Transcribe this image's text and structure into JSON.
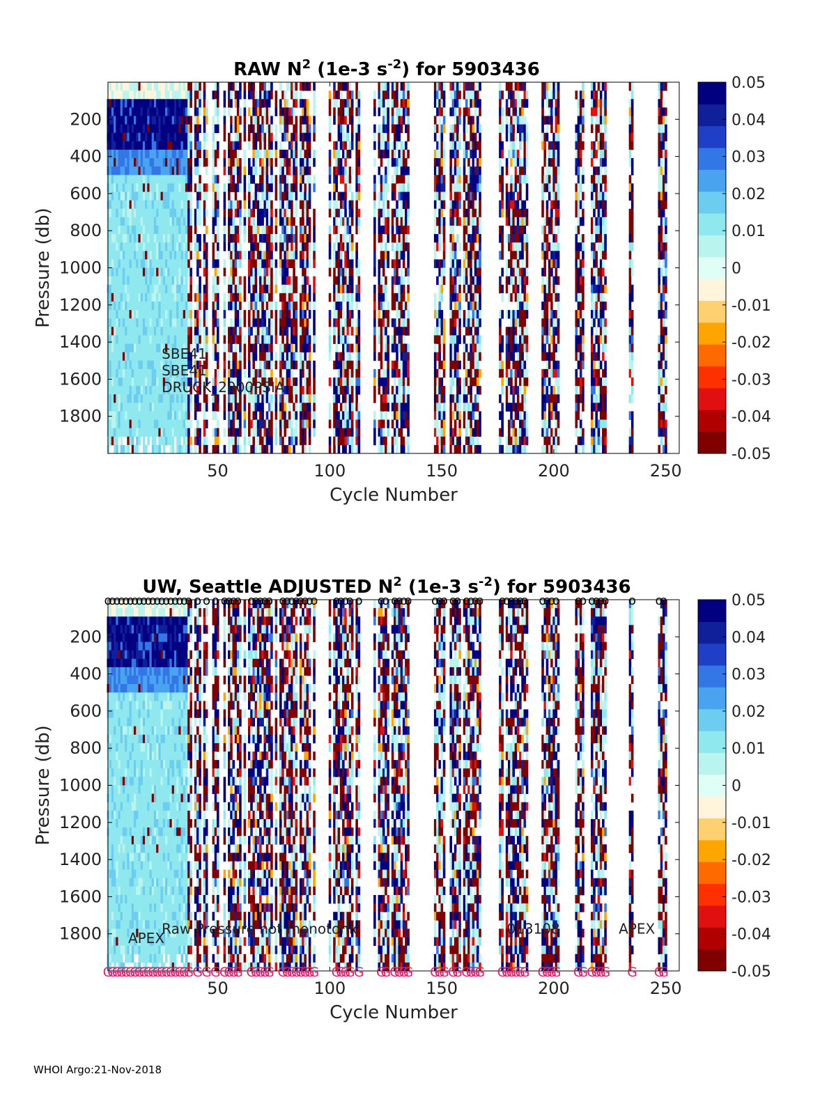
{
  "chart_data": [
    {
      "type": "heatmap",
      "title_prefix": "RAW N",
      "title_sup": "2",
      "title_mid": " (1e-3 s",
      "title_sup2": "-2",
      "title_suffix": ") for 5903436",
      "xlabel": "Cycle Number",
      "ylabel": "Pressure (db)",
      "xlim": [
        1,
        256
      ],
      "ylim": [
        0,
        2000
      ],
      "xticks": [
        "50",
        "100",
        "150",
        "200",
        "250"
      ],
      "xtick_values": [
        50,
        100,
        150,
        200,
        250
      ],
      "yticks": [
        "200",
        "400",
        "600",
        "800",
        "1000",
        "1200",
        "1400",
        "1600",
        "1800"
      ],
      "ytick_values": [
        200,
        400,
        600,
        800,
        1000,
        1200,
        1400,
        1600,
        1800
      ],
      "colorbar_ticks": [
        "0.05",
        "0.04",
        "0.03",
        "0.02",
        "0.01",
        "0",
        "-0.01",
        "-0.02",
        "-0.03",
        "-0.04",
        "-0.05"
      ],
      "colorbar_values": [
        0.05,
        0.04,
        0.03,
        0.02,
        0.01,
        0,
        -0.01,
        -0.02,
        -0.03,
        -0.04,
        -0.05
      ],
      "clim": [
        -0.05,
        0.05
      ],
      "annotations": [
        "SBE41",
        "SBE41",
        "DRUCK_2900PSIA"
      ],
      "annotation_pressures": [
        1490,
        1580,
        1670
      ],
      "annotation_cycle": 25
    },
    {
      "type": "heatmap",
      "title_prefix": "UW, Seattle  ADJUSTED N",
      "title_sup": "2",
      "title_mid": " (1e-3 s",
      "title_sup2": "-2",
      "title_suffix": ") for 5903436",
      "xlabel": "Cycle Number",
      "ylabel": "Pressure (db)",
      "xlim": [
        1,
        256
      ],
      "ylim": [
        0,
        2000
      ],
      "xticks": [
        "50",
        "100",
        "150",
        "200",
        "250"
      ],
      "xtick_values": [
        50,
        100,
        150,
        200,
        250
      ],
      "yticks": [
        "200",
        "400",
        "600",
        "800",
        "1000",
        "1200",
        "1400",
        "1600",
        "1800"
      ],
      "ytick_values": [
        200,
        400,
        600,
        800,
        1000,
        1200,
        1400,
        1600,
        1800
      ],
      "colorbar_ticks": [
        "0.05",
        "0.04",
        "0.03",
        "0.02",
        "0.01",
        "0",
        "-0.01",
        "-0.02",
        "-0.03",
        "-0.04",
        "-0.05"
      ],
      "colorbar_values": [
        0.05,
        0.04,
        0.03,
        0.02,
        0.01,
        0,
        -0.01,
        -0.02,
        -0.03,
        -0.04,
        -0.05
      ],
      "clim": [
        -0.05,
        0.05
      ],
      "annotations": [
        "Raw Pressure not monotonic",
        "013108",
        "APEX",
        "APEX"
      ],
      "annotation_cycles": [
        25,
        179,
        229,
        10
      ],
      "annotation_pressures": [
        1800,
        1800,
        1800,
        1850
      ],
      "qc_top_marker": "o",
      "qc_bottom_marker": "G",
      "qc_top_color": "#000000",
      "qc_bottom_color": "#e0206f"
    }
  ],
  "colormap": [
    "#800000",
    "#b00000",
    "#e01010",
    "#ff3000",
    "#ff6a00",
    "#ffa500",
    "#ffd070",
    "#fff5dc",
    "#dffff6",
    "#b9f5ee",
    "#8fe8ee",
    "#6ccdf0",
    "#4aa3ef",
    "#3377e6",
    "#1f3fc8",
    "#10209a",
    "#000080"
  ],
  "footer": "WHOI Argo:21-Nov-2018"
}
